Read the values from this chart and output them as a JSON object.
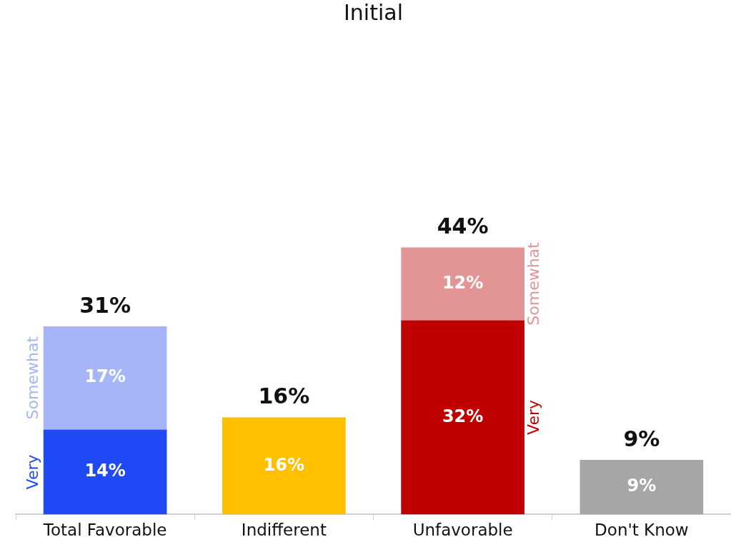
{
  "chart_data": {
    "type": "bar",
    "title": "Initial",
    "stacked": true,
    "categories": [
      "Total Favorable",
      "Indifferent",
      "Unfavorable",
      "Don't Know"
    ],
    "series": [
      {
        "name": "Very",
        "colors": [
          "#1f4af5",
          null,
          "#c00000",
          null
        ],
        "values": [
          14,
          null,
          32,
          null
        ],
        "value_labels": [
          "14%",
          null,
          "32%",
          null
        ]
      },
      {
        "name": "Somewhat",
        "colors": [
          "#a6b5f8",
          null,
          "#e39595",
          null
        ],
        "values": [
          17,
          null,
          12,
          null
        ],
        "value_labels": [
          "17%",
          null,
          "12%",
          null
        ]
      },
      {
        "colors": [
          null,
          "#ffc000",
          null,
          "#a6a6a6"
        ],
        "values": [
          null,
          16,
          null,
          9
        ],
        "value_labels": [
          null,
          "16%",
          null,
          "9%"
        ]
      }
    ],
    "totals": [
      "31%",
      "16%",
      "44%",
      "9%"
    ]
  }
}
